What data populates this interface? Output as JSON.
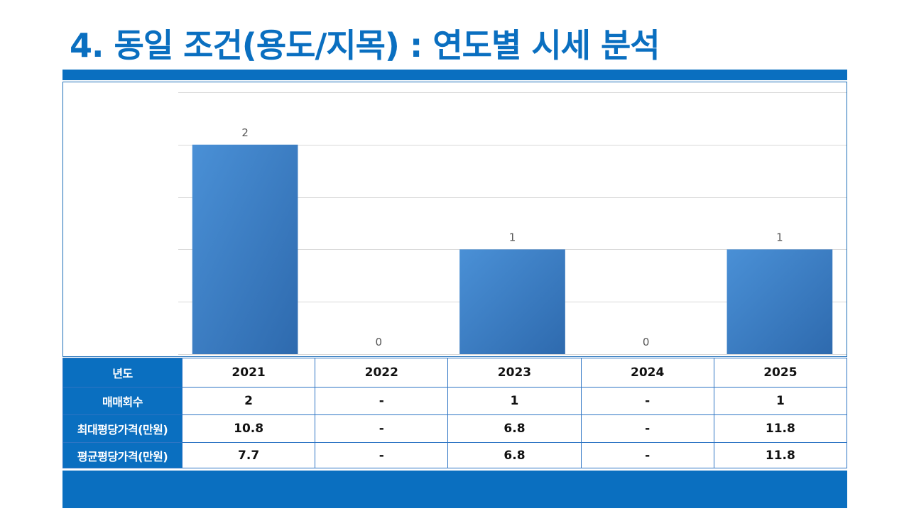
{
  "slide": {
    "title": "4. 동일 조건(용도/지목) : 연도별 시세 분석"
  },
  "colors": {
    "brand": "#0A6FC0",
    "bar_light": "#4A90D6",
    "bar_dark": "#2E6AAE",
    "grid": "#D9D9D9"
  },
  "chart_data": {
    "type": "bar",
    "categories": [
      "2021",
      "2022",
      "2023",
      "2024",
      "2025"
    ],
    "values": [
      2,
      0,
      1,
      0,
      1
    ],
    "data_labels": [
      "2",
      "0",
      "1",
      "0",
      "1"
    ],
    "title": "",
    "xlabel": "",
    "ylabel": "",
    "ylim": [
      0,
      2.5
    ],
    "grid": true,
    "legend": "none"
  },
  "table": {
    "rows": [
      {
        "header": "년도",
        "cells": [
          "2021",
          "2022",
          "2023",
          "2024",
          "2025"
        ]
      },
      {
        "header": "매매회수",
        "cells": [
          "2",
          "-",
          "1",
          "-",
          "1"
        ]
      },
      {
        "header": "최대평당가격(만원)",
        "cells": [
          "10.8",
          "-",
          "6.8",
          "-",
          "11.8"
        ]
      },
      {
        "header": "평균평당가격(만원)",
        "cells": [
          "7.7",
          "-",
          "6.8",
          "-",
          "11.8"
        ]
      }
    ]
  }
}
